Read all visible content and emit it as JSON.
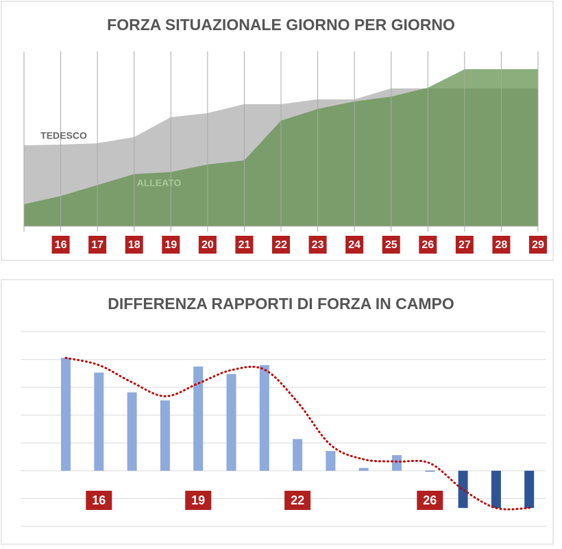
{
  "chart_data": [
    {
      "type": "area",
      "title": "FORZA SITUAZIONALE GIORNO PER GIORNO",
      "categories": [
        null,
        "16",
        "17",
        "18",
        "19",
        "20",
        "21",
        "22",
        "23",
        "24",
        "25",
        "26",
        "27",
        "28",
        "29"
      ],
      "ylim": [
        0,
        100
      ],
      "grid": true,
      "series": [
        {
          "name": "TEDESCO",
          "color": "#c3c3c3",
          "values": [
            47.2,
            47.6,
            48.4,
            52,
            63.6,
            66,
            71.2,
            71.2,
            74,
            74,
            80.4,
            80.4,
            80.4,
            80.4,
            80.4
          ]
        },
        {
          "name": "ALLEATO",
          "color": "#5e8f4a",
          "values": [
            12.8,
            17.6,
            24,
            30.4,
            31.6,
            36,
            38.4,
            61.6,
            68.4,
            72.8,
            75.6,
            80.8,
            91.6,
            91.6,
            91.6
          ]
        }
      ]
    },
    {
      "type": "bar",
      "title": "DIFFERENZA RAPPORTI DI FORZA IN CAMPO",
      "categories": [
        null,
        "16",
        null,
        null,
        "19",
        null,
        null,
        "22",
        null,
        null,
        null,
        "26",
        null,
        null,
        null
      ],
      "values": [
        4.06,
        3.53,
        2.82,
        2.53,
        3.75,
        3.48,
        3.8,
        1.14,
        0.71,
        0.1,
        0.56,
        -0.02,
        -1.34,
        -1.34,
        -1.34
      ],
      "color": "#8faadc",
      "negative_color": "#2f5496",
      "ylim": [
        -2.1,
        5
      ],
      "yticks": [
        -2,
        -1,
        0,
        1,
        2,
        3,
        4,
        5
      ],
      "grid": true,
      "trendline": {
        "color": "#c00000",
        "values": [
          4.06,
          3.8,
          3.18,
          2.68,
          3.14,
          3.62,
          3.64,
          2.47,
          0.93,
          0.41,
          0.33,
          0.27,
          -0.68,
          -1.34,
          -1.34
        ]
      }
    }
  ]
}
